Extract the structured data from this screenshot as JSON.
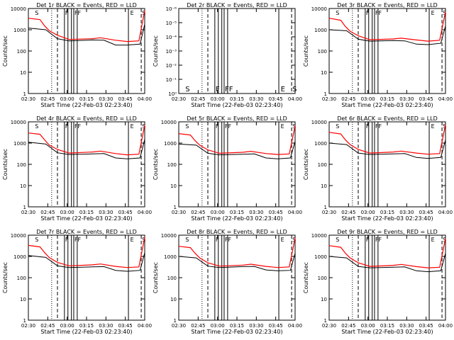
{
  "chart_data": {
    "type": "line",
    "x_ticks": [
      "02:30",
      "02:45",
      "03:00",
      "03:15",
      "03:30",
      "03:45",
      "04:00"
    ],
    "xlabel": "Start Time (22-Feb-03 02:23:40)",
    "colors": {
      "events": "#000000",
      "lld": "#ff0000",
      "axes": "#000000"
    },
    "panels": [
      {
        "title": "Det 1r  BLACK = Events, RED = LLD",
        "ylabel": "Counts/sec",
        "yscale": "log",
        "ylim": [
          1,
          10000
        ],
        "y_ticks": [
          "1",
          "10",
          "100",
          "1000",
          "10000"
        ],
        "events": [
          [
            0.0,
            1200
          ],
          [
            0.15,
            1000
          ],
          [
            0.25,
            380
          ],
          [
            0.35,
            300
          ],
          [
            0.55,
            330
          ],
          [
            0.65,
            320
          ],
          [
            0.75,
            190
          ],
          [
            0.85,
            190
          ],
          [
            0.96,
            210
          ],
          [
            1.0,
            1800
          ]
        ],
        "lld": [
          [
            0.0,
            3500
          ],
          [
            0.1,
            3000
          ],
          [
            0.14,
            1500
          ],
          [
            0.18,
            900
          ],
          [
            0.25,
            550
          ],
          [
            0.35,
            350
          ],
          [
            0.55,
            380
          ],
          [
            0.62,
            420
          ],
          [
            0.75,
            320
          ],
          [
            0.85,
            280
          ],
          [
            0.95,
            300
          ],
          [
            1.0,
            8000
          ]
        ],
        "dotted_at": [
          0.2
        ],
        "dashed_at": [
          0.25,
          0.97
        ],
        "solid_at": [
          0.31,
          0.34,
          0.37,
          0.39,
          0.42,
          0.86
        ],
        "markers": [
          {
            "x": 0.05,
            "label": "S"
          },
          {
            "x": 0.31,
            "label": "F"
          },
          {
            "x": 0.39,
            "label": "FF"
          },
          {
            "x": 0.87,
            "label": "E"
          },
          {
            "x": 0.97,
            "label": "S"
          }
        ]
      },
      {
        "title": "Det 2r  BLACK = Events, RED = LLD",
        "ylabel": "Counts/sec",
        "yscale": "log",
        "ylim": [
          1,
          1e-06
        ],
        "y_ticks": [
          "10⁰",
          "10⁻¹",
          "10⁻²",
          "10⁻³",
          "10⁻⁴",
          "10⁻⁵",
          "10⁻⁶"
        ],
        "events": [],
        "lld": [],
        "dotted_at": [
          0.2
        ],
        "dashed_at": [
          0.25,
          0.97
        ],
        "solid_at": [
          0.31,
          0.34,
          0.37,
          0.39,
          0.42,
          0.86
        ],
        "markers": [
          {
            "x": 0.05,
            "label": "S"
          },
          {
            "x": 0.31,
            "label": "F"
          },
          {
            "x": 0.39,
            "label": "FF"
          },
          {
            "x": 0.87,
            "label": "E"
          },
          {
            "x": 0.97,
            "label": "S"
          }
        ]
      },
      {
        "title": "Det 3r  BLACK = Events, RED = LLD",
        "ylabel": "Counts/sec",
        "yscale": "log",
        "ylim": [
          1,
          10000
        ],
        "y_ticks": [
          "1",
          "10",
          "100",
          "1000",
          "10000"
        ],
        "events": [
          [
            0.0,
            1000
          ],
          [
            0.15,
            900
          ],
          [
            0.25,
            360
          ],
          [
            0.35,
            290
          ],
          [
            0.55,
            310
          ],
          [
            0.65,
            300
          ],
          [
            0.75,
            210
          ],
          [
            0.85,
            200
          ],
          [
            0.96,
            230
          ],
          [
            1.0,
            1500
          ]
        ],
        "lld": [
          [
            0.0,
            3500
          ],
          [
            0.1,
            2800
          ],
          [
            0.14,
            1400
          ],
          [
            0.18,
            850
          ],
          [
            0.25,
            520
          ],
          [
            0.35,
            340
          ],
          [
            0.55,
            370
          ],
          [
            0.62,
            400
          ],
          [
            0.75,
            330
          ],
          [
            0.85,
            290
          ],
          [
            0.95,
            320
          ],
          [
            1.0,
            7000
          ]
        ],
        "dotted_at": [
          0.2
        ],
        "dashed_at": [
          0.25,
          0.97
        ],
        "solid_at": [
          0.31,
          0.34,
          0.37,
          0.39,
          0.42,
          0.86
        ],
        "markers": [
          {
            "x": 0.05,
            "label": "S"
          },
          {
            "x": 0.31,
            "label": "F"
          },
          {
            "x": 0.39,
            "label": "FF"
          },
          {
            "x": 0.87,
            "label": "E"
          },
          {
            "x": 0.97,
            "label": "S"
          }
        ]
      },
      {
        "title": "Det 4r  BLACK = Events, RED = LLD",
        "ylabel": "Counts/sec",
        "yscale": "log",
        "ylim": [
          1,
          10000
        ],
        "y_ticks": [
          "1",
          "10",
          "100",
          "1000",
          "10000"
        ],
        "events": [
          [
            0.0,
            1100
          ],
          [
            0.15,
            900
          ],
          [
            0.25,
            350
          ],
          [
            0.35,
            290
          ],
          [
            0.55,
            310
          ],
          [
            0.65,
            320
          ],
          [
            0.75,
            200
          ],
          [
            0.85,
            180
          ],
          [
            0.96,
            200
          ],
          [
            1.0,
            1500
          ]
        ],
        "lld": [
          [
            0.0,
            3000
          ],
          [
            0.1,
            2600
          ],
          [
            0.14,
            1400
          ],
          [
            0.18,
            800
          ],
          [
            0.25,
            500
          ],
          [
            0.35,
            340
          ],
          [
            0.55,
            380
          ],
          [
            0.62,
            420
          ],
          [
            0.75,
            320
          ],
          [
            0.85,
            280
          ],
          [
            0.95,
            300
          ],
          [
            1.0,
            7000
          ]
        ],
        "dotted_at": [
          0.2
        ],
        "dashed_at": [
          0.25,
          0.97
        ],
        "solid_at": [
          0.31,
          0.34,
          0.37,
          0.39,
          0.42,
          0.86
        ],
        "markers": [
          {
            "x": 0.05,
            "label": "S"
          },
          {
            "x": 0.31,
            "label": "F"
          },
          {
            "x": 0.39,
            "label": "FF"
          },
          {
            "x": 0.87,
            "label": "E"
          },
          {
            "x": 0.97,
            "label": "S"
          }
        ]
      },
      {
        "title": "Det 5r  BLACK = Events, RED = LLD",
        "ylabel": "Counts/sec",
        "yscale": "log",
        "ylim": [
          1,
          10000
        ],
        "y_ticks": [
          "1",
          "10",
          "100",
          "1000",
          "10000"
        ],
        "events": [
          [
            0.0,
            900
          ],
          [
            0.15,
            800
          ],
          [
            0.25,
            330
          ],
          [
            0.35,
            280
          ],
          [
            0.55,
            300
          ],
          [
            0.65,
            310
          ],
          [
            0.75,
            200
          ],
          [
            0.85,
            180
          ],
          [
            0.96,
            200
          ],
          [
            1.0,
            1200
          ]
        ],
        "lld": [
          [
            0.0,
            2800
          ],
          [
            0.1,
            2400
          ],
          [
            0.14,
            1300
          ],
          [
            0.18,
            800
          ],
          [
            0.25,
            480
          ],
          [
            0.35,
            330
          ],
          [
            0.55,
            370
          ],
          [
            0.62,
            410
          ],
          [
            0.75,
            320
          ],
          [
            0.85,
            290
          ],
          [
            0.95,
            310
          ],
          [
            1.0,
            6500
          ]
        ],
        "dotted_at": [
          0.2
        ],
        "dashed_at": [
          0.25,
          0.97
        ],
        "solid_at": [
          0.31,
          0.34,
          0.37,
          0.39,
          0.42,
          0.86
        ],
        "markers": [
          {
            "x": 0.05,
            "label": "S"
          },
          {
            "x": 0.31,
            "label": "F"
          },
          {
            "x": 0.39,
            "label": "FF"
          },
          {
            "x": 0.87,
            "label": "E"
          },
          {
            "x": 0.97,
            "label": "S"
          }
        ]
      },
      {
        "title": "Det 6r  BLACK = Events, RED = LLD",
        "ylabel": "Counts/sec",
        "yscale": "log",
        "ylim": [
          1,
          10000
        ],
        "y_ticks": [
          "1",
          "10",
          "100",
          "1000",
          "10000"
        ],
        "events": [
          [
            0.0,
            1000
          ],
          [
            0.15,
            850
          ],
          [
            0.25,
            340
          ],
          [
            0.35,
            290
          ],
          [
            0.55,
            310
          ],
          [
            0.65,
            320
          ],
          [
            0.75,
            210
          ],
          [
            0.85,
            190
          ],
          [
            0.96,
            210
          ],
          [
            1.0,
            1400
          ]
        ],
        "lld": [
          [
            0.0,
            3200
          ],
          [
            0.1,
            2700
          ],
          [
            0.14,
            1400
          ],
          [
            0.18,
            850
          ],
          [
            0.25,
            500
          ],
          [
            0.35,
            340
          ],
          [
            0.55,
            380
          ],
          [
            0.62,
            420
          ],
          [
            0.75,
            340
          ],
          [
            0.85,
            300
          ],
          [
            0.95,
            320
          ],
          [
            1.0,
            7500
          ]
        ],
        "dotted_at": [
          0.2
        ],
        "dashed_at": [
          0.25,
          0.97
        ],
        "solid_at": [
          0.31,
          0.34,
          0.37,
          0.39,
          0.42,
          0.86
        ],
        "markers": [
          {
            "x": 0.05,
            "label": "S"
          },
          {
            "x": 0.31,
            "label": "F"
          },
          {
            "x": 0.39,
            "label": "FF"
          },
          {
            "x": 0.87,
            "label": "E"
          },
          {
            "x": 0.97,
            "label": "S"
          }
        ]
      },
      {
        "title": "Det 7r  BLACK = Events, RED = LLD",
        "ylabel": "Counts/sec",
        "yscale": "log",
        "ylim": [
          1,
          10000
        ],
        "y_ticks": [
          "1",
          "10",
          "100",
          "1000",
          "10000"
        ],
        "events": [
          [
            0.0,
            1100
          ],
          [
            0.15,
            900
          ],
          [
            0.25,
            360
          ],
          [
            0.35,
            300
          ],
          [
            0.55,
            320
          ],
          [
            0.65,
            330
          ],
          [
            0.75,
            220
          ],
          [
            0.85,
            200
          ],
          [
            0.96,
            220
          ],
          [
            1.0,
            1500
          ]
        ],
        "lld": [
          [
            0.0,
            3300
          ],
          [
            0.1,
            2800
          ],
          [
            0.14,
            1500
          ],
          [
            0.18,
            880
          ],
          [
            0.25,
            520
          ],
          [
            0.35,
            360
          ],
          [
            0.55,
            400
          ],
          [
            0.62,
            440
          ],
          [
            0.75,
            340
          ],
          [
            0.85,
            300
          ],
          [
            0.95,
            320
          ],
          [
            1.0,
            8000
          ]
        ],
        "dotted_at": [
          0.2
        ],
        "dashed_at": [
          0.25,
          0.97
        ],
        "solid_at": [
          0.31,
          0.34,
          0.37,
          0.39,
          0.42,
          0.86
        ],
        "markers": [
          {
            "x": 0.05,
            "label": "S"
          },
          {
            "x": 0.31,
            "label": "F"
          },
          {
            "x": 0.39,
            "label": "FF"
          },
          {
            "x": 0.87,
            "label": "E"
          },
          {
            "x": 0.97,
            "label": "S"
          }
        ]
      },
      {
        "title": "Det 8r  BLACK = Events, RED = LLD",
        "ylabel": "Counts/sec",
        "yscale": "log",
        "ylim": [
          1,
          10000
        ],
        "y_ticks": [
          "1",
          "10",
          "100",
          "1000",
          "10000"
        ],
        "events": [
          [
            0.0,
            1000
          ],
          [
            0.15,
            850
          ],
          [
            0.25,
            350
          ],
          [
            0.35,
            300
          ],
          [
            0.55,
            330
          ],
          [
            0.65,
            340
          ],
          [
            0.75,
            230
          ],
          [
            0.85,
            210
          ],
          [
            0.96,
            220
          ],
          [
            1.0,
            1400
          ]
        ],
        "lld": [
          [
            0.0,
            3000
          ],
          [
            0.1,
            2600
          ],
          [
            0.14,
            1400
          ],
          [
            0.18,
            850
          ],
          [
            0.25,
            500
          ],
          [
            0.35,
            350
          ],
          [
            0.55,
            390
          ],
          [
            0.62,
            430
          ],
          [
            0.75,
            340
          ],
          [
            0.85,
            300
          ],
          [
            0.95,
            320
          ],
          [
            1.0,
            7500
          ]
        ],
        "dotted_at": [
          0.2
        ],
        "dashed_at": [
          0.25,
          0.97
        ],
        "solid_at": [
          0.31,
          0.34,
          0.37,
          0.39,
          0.42,
          0.86
        ],
        "markers": [
          {
            "x": 0.05,
            "label": "S"
          },
          {
            "x": 0.31,
            "label": "F"
          },
          {
            "x": 0.39,
            "label": "FF"
          },
          {
            "x": 0.87,
            "label": "E"
          },
          {
            "x": 0.97,
            "label": "S"
          }
        ]
      },
      {
        "title": "Det 9r  BLACK = Events, RED = LLD",
        "ylabel": "Counts/sec",
        "yscale": "log",
        "ylim": [
          1,
          10000
        ],
        "y_ticks": [
          "1",
          "10",
          "100",
          "1000",
          "10000"
        ],
        "events": [
          [
            0.0,
            1000
          ],
          [
            0.15,
            850
          ],
          [
            0.25,
            340
          ],
          [
            0.35,
            290
          ],
          [
            0.55,
            310
          ],
          [
            0.65,
            320
          ],
          [
            0.75,
            210
          ],
          [
            0.85,
            190
          ],
          [
            0.96,
            210
          ],
          [
            1.0,
            1400
          ]
        ],
        "lld": [
          [
            0.0,
            3200
          ],
          [
            0.1,
            2700
          ],
          [
            0.14,
            1400
          ],
          [
            0.18,
            850
          ],
          [
            0.25,
            500
          ],
          [
            0.35,
            340
          ],
          [
            0.55,
            380
          ],
          [
            0.62,
            420
          ],
          [
            0.75,
            330
          ],
          [
            0.85,
            290
          ],
          [
            0.95,
            310
          ],
          [
            1.0,
            7000
          ]
        ],
        "dotted_at": [
          0.2
        ],
        "dashed_at": [
          0.25,
          0.97
        ],
        "solid_at": [
          0.31,
          0.34,
          0.37,
          0.39,
          0.42,
          0.86
        ],
        "markers": [
          {
            "x": 0.05,
            "label": "S"
          },
          {
            "x": 0.31,
            "label": "F"
          },
          {
            "x": 0.39,
            "label": "FF"
          },
          {
            "x": 0.87,
            "label": "E"
          },
          {
            "x": 0.97,
            "label": "S"
          }
        ]
      }
    ]
  }
}
